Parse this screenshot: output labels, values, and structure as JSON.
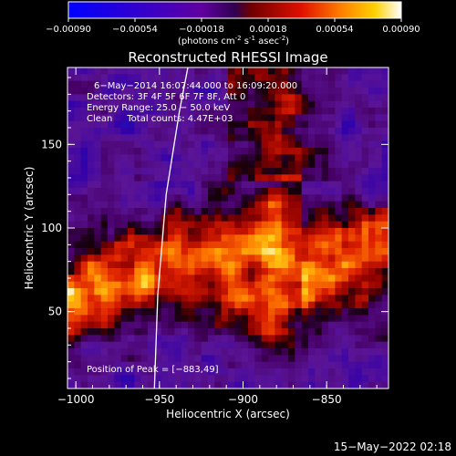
{
  "colorbar": {
    "ticks": [
      "-0.00090",
      "-0.00054",
      "-0.00018",
      "0.00018",
      "0.00054",
      "0.00090"
    ],
    "units_line1": "(photons cm",
    "units_sup1": "-2",
    "units_line2": " s",
    "units_sup2": "-1",
    "units_line3": " asec",
    "units_sup3": "-2",
    "units_line4": ")"
  },
  "chart_data": {
    "type": "heatmap",
    "title": "Reconstructed RHESSI Image",
    "xlabel": "Heliocentric X (arcsec)",
    "ylabel": "Heliocentric Y (arcsec)",
    "xlim": [
      -1005,
      -813
    ],
    "ylim": [
      4,
      196
    ],
    "x_ticks": [
      -1000,
      -950,
      -900,
      -850
    ],
    "x_tick_labels": [
      "−1000",
      "−950",
      "−900",
      "−850"
    ],
    "y_ticks": [
      50,
      100,
      150
    ],
    "y_tick_labels": [
      "50",
      "100",
      "150"
    ],
    "color_range": [
      -0.0009,
      0.0009
    ],
    "colormap": "RHESSI blue-purple-red-yellow-white",
    "annotations": {
      "time": "6−May−2014 16:07:44.000 to 16:09:20.000",
      "detectors": "Detectors: 3F 4F 5F 6F 7F 8F, Att 0",
      "energy": "Energy Range: 25.0 − 50.0 keV",
      "clean": "Clean     Total counts: 4.47E+03",
      "peak": "Position of Peak = [−883,49]"
    },
    "peak": [
      -883,
      49
    ],
    "limb_points": [
      [
        -953,
        4
      ],
      [
        -951,
        60
      ],
      [
        -946,
        120
      ],
      [
        -938,
        170
      ],
      [
        -933,
        196
      ]
    ]
  },
  "footer_timestamp": "15−May−2022 02:18"
}
